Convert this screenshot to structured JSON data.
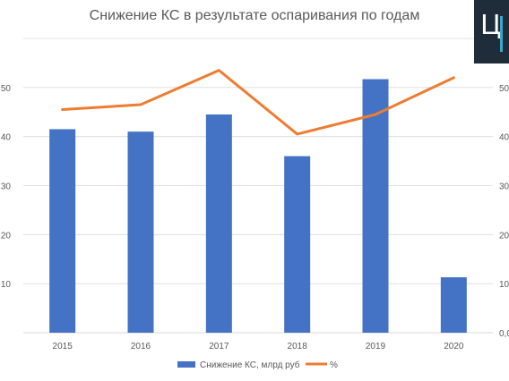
{
  "title": "Снижение КС в результате оспаривания по годам",
  "logo": {
    "letter": "Ц"
  },
  "colors": {
    "bar": "#4472c4",
    "line": "#ed7d31",
    "grid": "#d9d9d9",
    "text": "#595959"
  },
  "chart_data": {
    "type": "bar",
    "title": "Снижение КС в результате оспаривания по годам",
    "categories": [
      "2015",
      "2016",
      "2017",
      "2018",
      "2019",
      "2020"
    ],
    "series": [
      {
        "name": "Снижение КС, млрд руб",
        "type": "bar",
        "axis": "left",
        "values": [
          41.5,
          41,
          44.5,
          36,
          51.7,
          11.3
        ]
      },
      {
        "name": "%",
        "type": "line",
        "axis": "right",
        "values": [
          45.5,
          46.5,
          53.5,
          40.5,
          44.5,
          52
        ]
      }
    ],
    "left_axis": {
      "ylim": [
        0,
        60
      ],
      "ticks": [
        "",
        "10",
        "20",
        "30",
        "40",
        "50"
      ]
    },
    "right_axis": {
      "ylim": [
        0,
        60
      ],
      "ticks": [
        "0,0",
        "10",
        "20",
        "30",
        "40",
        "50"
      ]
    },
    "grid": true,
    "legend_position": "bottom"
  }
}
